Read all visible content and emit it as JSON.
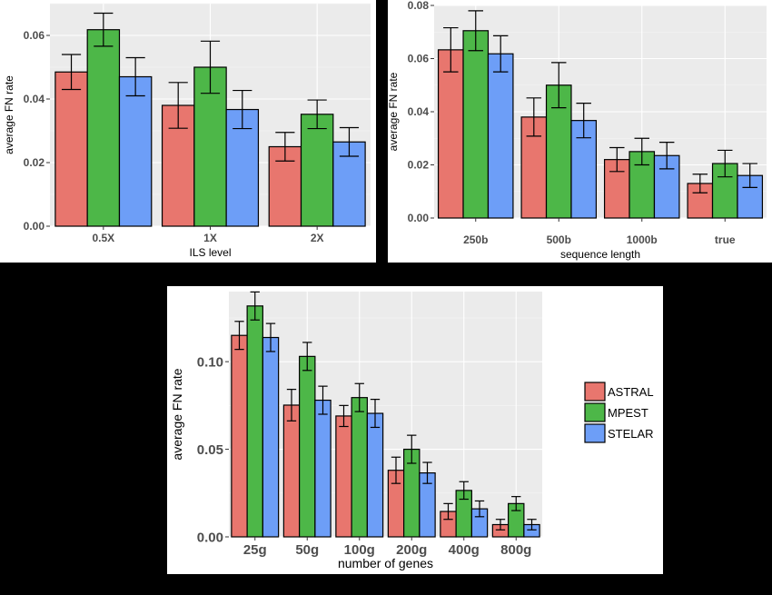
{
  "legend": {
    "items": [
      {
        "label": "ASTRAL",
        "color": "#E8766E"
      },
      {
        "label": "MPEST",
        "color": "#4DB748"
      },
      {
        "label": "STELAR",
        "color": "#6D9EF7"
      }
    ]
  },
  "chart_data": [
    {
      "type": "bar",
      "xlabel": "ILS level",
      "ylabel": "average FN rate",
      "categories": [
        "0.5X",
        "1X",
        "2X"
      ],
      "ylim": [
        0,
        0.07
      ],
      "yticks": [
        0.0,
        0.02,
        0.04,
        0.06
      ],
      "ytick_labels": [
        "0.00",
        "0.02",
        "0.04",
        "0.06"
      ],
      "grid": true,
      "series": [
        {
          "name": "ASTRAL",
          "color": "#E8766E",
          "values": [
            0.0485,
            0.038,
            0.025
          ],
          "err": [
            0.0055,
            0.0072,
            0.0045
          ]
        },
        {
          "name": "MPEST",
          "color": "#4DB748",
          "values": [
            0.0618,
            0.05,
            0.0352
          ],
          "err": [
            0.0052,
            0.0082,
            0.0045
          ]
        },
        {
          "name": "STELAR",
          "color": "#6D9EF7",
          "values": [
            0.047,
            0.0367,
            0.0265
          ],
          "err": [
            0.006,
            0.006,
            0.0045
          ]
        }
      ]
    },
    {
      "type": "bar",
      "xlabel": "sequence length",
      "ylabel": "average FN rate",
      "categories": [
        "250b",
        "500b",
        "1000b",
        "true"
      ],
      "ylim": [
        0,
        0.08
      ],
      "yticks": [
        0.0,
        0.02,
        0.04,
        0.06,
        0.08
      ],
      "ytick_labels": [
        "0.00",
        "0.02",
        "0.04",
        "0.06",
        "0.08"
      ],
      "grid": true,
      "series": [
        {
          "name": "ASTRAL",
          "color": "#E8766E",
          "values": [
            0.0633,
            0.038,
            0.022,
            0.013
          ],
          "err": [
            0.0083,
            0.0072,
            0.0045,
            0.0035
          ]
        },
        {
          "name": "MPEST",
          "color": "#4DB748",
          "values": [
            0.0705,
            0.05,
            0.025,
            0.0205
          ],
          "err": [
            0.0075,
            0.0085,
            0.005,
            0.005
          ]
        },
        {
          "name": "STELAR",
          "color": "#6D9EF7",
          "values": [
            0.0618,
            0.0367,
            0.0235,
            0.016
          ],
          "err": [
            0.0068,
            0.0065,
            0.005,
            0.0045
          ]
        }
      ]
    },
    {
      "type": "bar",
      "xlabel": "number of genes",
      "ylabel": "average FN rate",
      "categories": [
        "25g",
        "50g",
        "100g",
        "200g",
        "400g",
        "800g"
      ],
      "ylim": [
        0,
        0.14
      ],
      "yticks": [
        0.0,
        0.05,
        0.1
      ],
      "ytick_labels": [
        "0.00",
        "0.05",
        "0.10"
      ],
      "grid": true,
      "series": [
        {
          "name": "ASTRAL",
          "color": "#E8766E",
          "values": [
            0.115,
            0.0752,
            0.069,
            0.038,
            0.0145,
            0.007
          ],
          "err": [
            0.008,
            0.009,
            0.006,
            0.0075,
            0.0045,
            0.003
          ]
        },
        {
          "name": "MPEST",
          "color": "#4DB748",
          "values": [
            0.1318,
            0.103,
            0.0795,
            0.05,
            0.0265,
            0.019
          ],
          "err": [
            0.008,
            0.008,
            0.008,
            0.008,
            0.005,
            0.004
          ]
        },
        {
          "name": "STELAR",
          "color": "#6D9EF7",
          "values": [
            0.1138,
            0.078,
            0.0705,
            0.0365,
            0.016,
            0.007
          ],
          "err": [
            0.008,
            0.008,
            0.008,
            0.006,
            0.0045,
            0.003
          ]
        }
      ]
    }
  ]
}
